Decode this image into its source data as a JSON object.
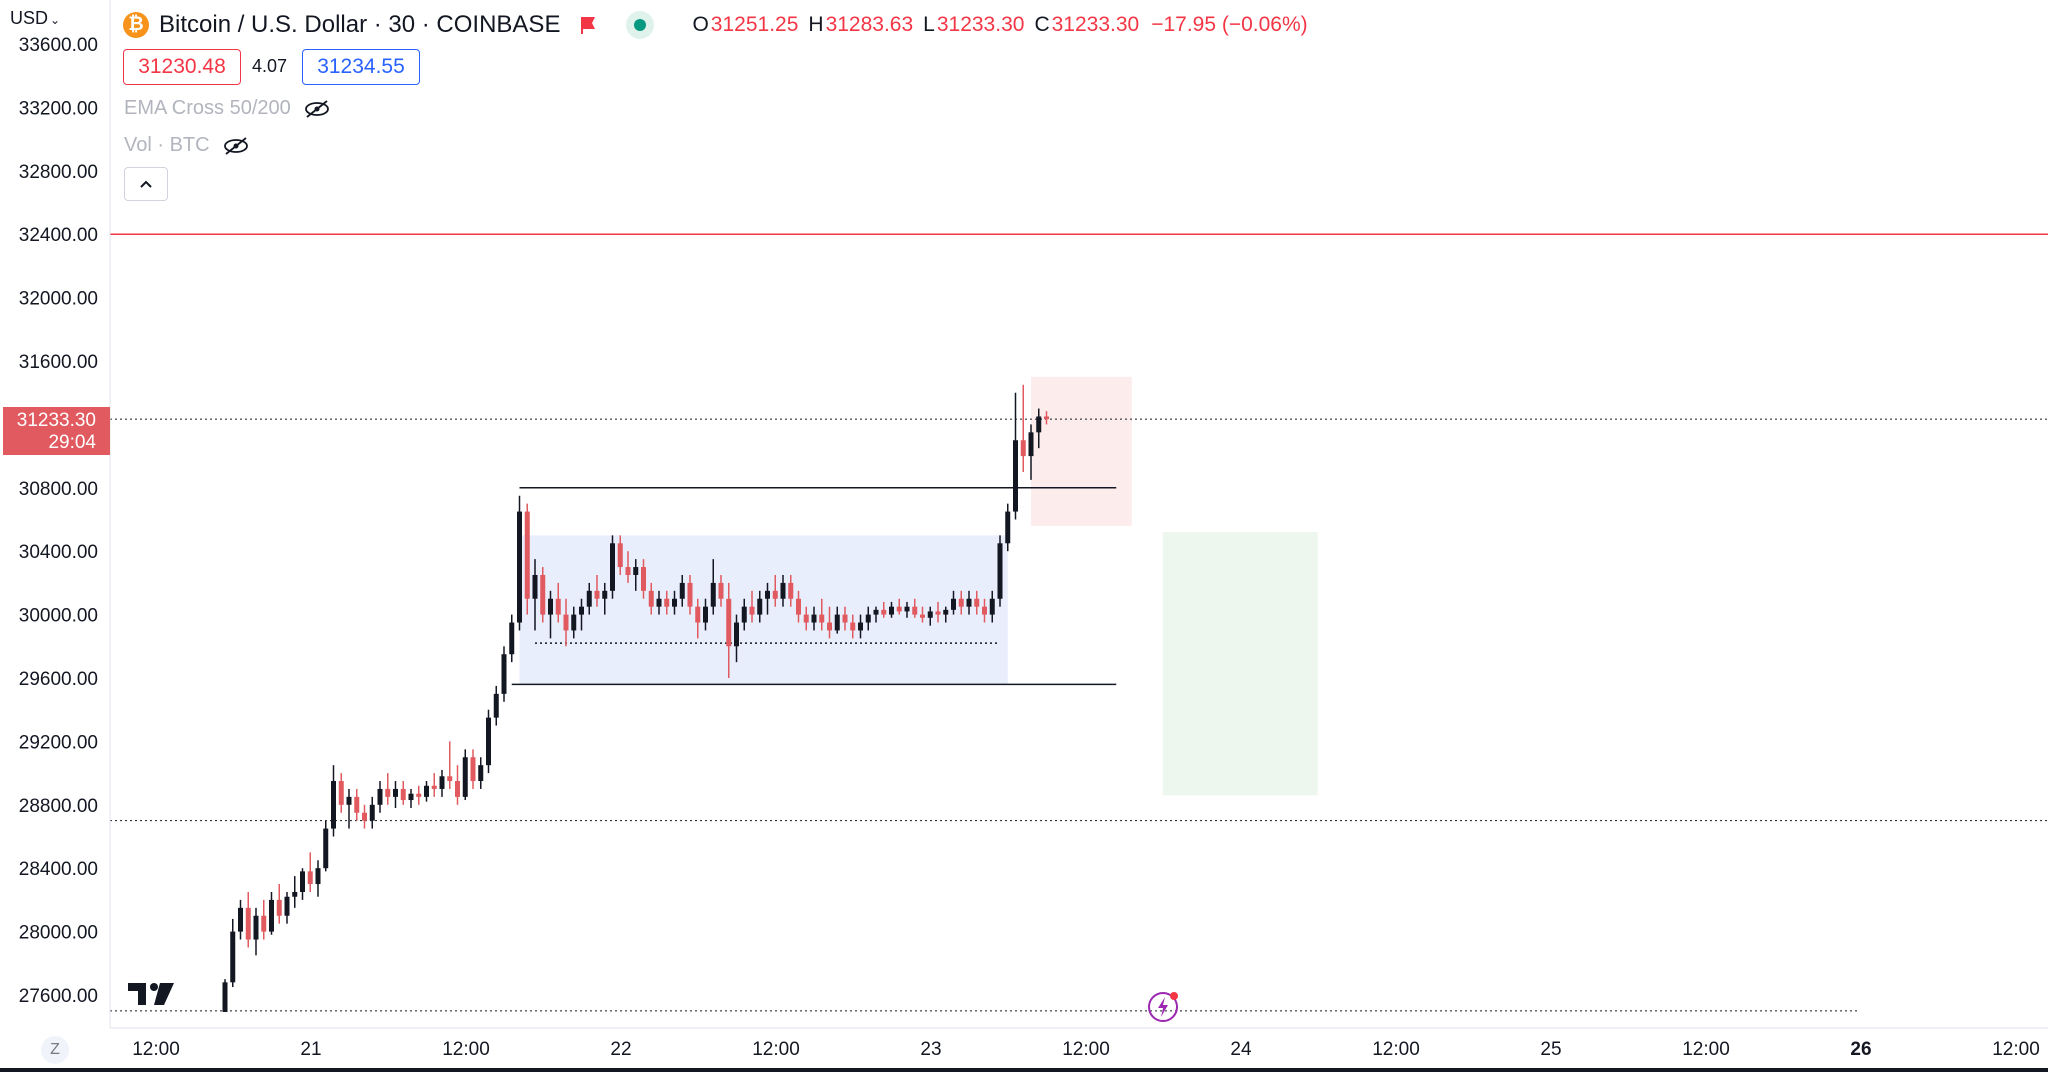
{
  "header": {
    "currency_selector": "USD",
    "coin_symbol": "₿",
    "symbol_title": "Bitcoin / U.S. Dollar · 30 · COINBASE",
    "ohlc": [
      {
        "key": "O",
        "value": "31251.25"
      },
      {
        "key": "H",
        "value": "31283.63"
      },
      {
        "key": "L",
        "value": "31233.30"
      },
      {
        "key": "C",
        "value": "31233.30"
      }
    ],
    "change": "−17.95 (−0.06%)",
    "sell_price": "31230.48",
    "spread": "4.07",
    "buy_price": "31234.55",
    "indicators": [
      "EMA Cross 50/200",
      "Vol · BTC"
    ]
  },
  "price_axis": {
    "ticks": [
      "27600.00",
      "28000.00",
      "28400.00",
      "28800.00",
      "29200.00",
      "29600.00",
      "30000.00",
      "30400.00",
      "30800.00",
      "31200.00",
      "31600.00",
      "32000.00",
      "32400.00",
      "32800.00",
      "33200.00",
      "33600.00"
    ],
    "last_price": "31233.30",
    "countdown": "29:04"
  },
  "time_axis": {
    "ticks": [
      "12:00",
      "21",
      "12:00",
      "22",
      "12:00",
      "23",
      "12:00",
      "24",
      "12:00",
      "25",
      "12:00",
      "26",
      "12:00"
    ]
  },
  "bottom": {
    "scale_button": "Z"
  },
  "colors": {
    "up": "#131722",
    "down": "#e05a5f",
    "range_box": "#e9eefc",
    "target_box": "#eef7ee",
    "stop_box": "#fcecec",
    "hline_red": "#f23645"
  },
  "chart_data": {
    "type": "candlestick",
    "symbol": "Bitcoin / U.S. Dollar",
    "interval": "30",
    "exchange": "COINBASE",
    "ylim": [
      27450,
      33650
    ],
    "xlim_bars": [
      0,
      220
    ],
    "bars_visible": 120,
    "time_ticks_bar_index": {
      "21 12:00": [
        0,
        10
      ],
      "labels_every_bars": 24
    },
    "candles_ohlc": [
      [
        27400,
        27700,
        27350,
        27680
      ],
      [
        27680,
        28080,
        27650,
        28000
      ],
      [
        28000,
        28200,
        27950,
        28150
      ],
      [
        28150,
        28250,
        27900,
        27950
      ],
      [
        27950,
        28150,
        27850,
        28100
      ],
      [
        28100,
        28200,
        27950,
        28000
      ],
      [
        28000,
        28250,
        27980,
        28200
      ],
      [
        28200,
        28300,
        28050,
        28100
      ],
      [
        28100,
        28250,
        28050,
        28220
      ],
      [
        28220,
        28350,
        28150,
        28250
      ],
      [
        28250,
        28400,
        28200,
        28380
      ],
      [
        28380,
        28500,
        28250,
        28300
      ],
      [
        28300,
        28450,
        28220,
        28400
      ],
      [
        28400,
        28700,
        28380,
        28650
      ],
      [
        28650,
        29050,
        28600,
        28950
      ],
      [
        28950,
        29000,
        28750,
        28800
      ],
      [
        28800,
        28900,
        28650,
        28850
      ],
      [
        28850,
        28900,
        28700,
        28750
      ],
      [
        28750,
        28800,
        28650,
        28700
      ],
      [
        28700,
        28850,
        28650,
        28800
      ],
      [
        28800,
        28950,
        28750,
        28900
      ],
      [
        28900,
        29000,
        28800,
        28850
      ],
      [
        28850,
        28950,
        28780,
        28900
      ],
      [
        28900,
        28950,
        28800,
        28830
      ],
      [
        28830,
        28900,
        28780,
        28870
      ],
      [
        28870,
        28920,
        28800,
        28850
      ],
      [
        28850,
        28950,
        28820,
        28920
      ],
      [
        28920,
        29000,
        28850,
        28900
      ],
      [
        28900,
        29020,
        28850,
        28980
      ],
      [
        28980,
        29200,
        28900,
        28950
      ],
      [
        28950,
        29050,
        28800,
        28850
      ],
      [
        28850,
        29150,
        28830,
        29100
      ],
      [
        29100,
        29150,
        28900,
        28950
      ],
      [
        28950,
        29100,
        28900,
        29050
      ],
      [
        29050,
        29400,
        29000,
        29350
      ],
      [
        29350,
        29550,
        29300,
        29500
      ],
      [
        29500,
        29800,
        29450,
        29750
      ],
      [
        29750,
        30000,
        29700,
        29950
      ],
      [
        29950,
        30750,
        29900,
        30650
      ],
      [
        30650,
        30700,
        30000,
        30100
      ],
      [
        30100,
        30350,
        29900,
        30250
      ],
      [
        30250,
        30300,
        29950,
        30000
      ],
      [
        30000,
        30150,
        29850,
        30100
      ],
      [
        30100,
        30200,
        29950,
        30000
      ],
      [
        30000,
        30100,
        29800,
        29900
      ],
      [
        29900,
        30050,
        29850,
        30000
      ],
      [
        30000,
        30100,
        29900,
        30050
      ],
      [
        30050,
        30200,
        30000,
        30150
      ],
      [
        30150,
        30250,
        30050,
        30100
      ],
      [
        30100,
        30200,
        30000,
        30150
      ],
      [
        30150,
        30500,
        30100,
        30450
      ],
      [
        30450,
        30500,
        30250,
        30300
      ],
      [
        30300,
        30400,
        30200,
        30250
      ],
      [
        30250,
        30350,
        30150,
        30300
      ],
      [
        30300,
        30350,
        30100,
        30150
      ],
      [
        30150,
        30200,
        30000,
        30050
      ],
      [
        30050,
        30150,
        30000,
        30100
      ],
      [
        30100,
        30150,
        30000,
        30050
      ],
      [
        30050,
        30150,
        30000,
        30100
      ],
      [
        30100,
        30250,
        30050,
        30200
      ],
      [
        30200,
        30250,
        30000,
        30050
      ],
      [
        30050,
        30100,
        29850,
        29950
      ],
      [
        29950,
        30100,
        29900,
        30050
      ],
      [
        30050,
        30350,
        30000,
        30200
      ],
      [
        30200,
        30250,
        30050,
        30100
      ],
      [
        30100,
        30200,
        29600,
        29800
      ],
      [
        29800,
        30000,
        29700,
        29950
      ],
      [
        29950,
        30100,
        29900,
        30050
      ],
      [
        30050,
        30150,
        29950,
        30000
      ],
      [
        30000,
        30150,
        29950,
        30100
      ],
      [
        30100,
        30200,
        30000,
        30150
      ],
      [
        30150,
        30250,
        30050,
        30100
      ],
      [
        30100,
        30250,
        30050,
        30200
      ],
      [
        30200,
        30250,
        30050,
        30100
      ],
      [
        30100,
        30150,
        29950,
        30000
      ],
      [
        30000,
        30050,
        29900,
        29950
      ],
      [
        29950,
        30050,
        29900,
        30000
      ],
      [
        30000,
        30100,
        29900,
        29950
      ],
      [
        29950,
        30050,
        29850,
        29900
      ],
      [
        29900,
        30050,
        29880,
        30000
      ],
      [
        30000,
        30050,
        29900,
        29950
      ],
      [
        29950,
        30000,
        29850,
        29900
      ],
      [
        29900,
        30000,
        29850,
        29950
      ],
      [
        29950,
        30050,
        29900,
        30000
      ],
      [
        30000,
        30050,
        29950,
        30030
      ],
      [
        30030,
        30080,
        29980,
        30000
      ],
      [
        30000,
        30080,
        29980,
        30050
      ],
      [
        30050,
        30100,
        30000,
        30020
      ],
      [
        30020,
        30080,
        29980,
        30050
      ],
      [
        30050,
        30100,
        29980,
        30000
      ],
      [
        30000,
        30050,
        29950,
        29980
      ],
      [
        29980,
        30050,
        29930,
        30020
      ],
      [
        30020,
        30080,
        29950,
        30000
      ],
      [
        30000,
        30050,
        29950,
        30030
      ],
      [
        30030,
        30150,
        30000,
        30100
      ],
      [
        30100,
        30150,
        30000,
        30050
      ],
      [
        30050,
        30150,
        30000,
        30100
      ],
      [
        30100,
        30150,
        30000,
        30050
      ],
      [
        30050,
        30100,
        29950,
        30000
      ],
      [
        30000,
        30150,
        29950,
        30100
      ],
      [
        30100,
        30500,
        30050,
        30450
      ],
      [
        30450,
        30700,
        30400,
        30650
      ],
      [
        30650,
        31400,
        30600,
        31100
      ],
      [
        31100,
        31450,
        30900,
        31000
      ],
      [
        31000,
        31200,
        30850,
        31150
      ],
      [
        31150,
        31300,
        31050,
        31250
      ],
      [
        31250,
        31284,
        31200,
        31233
      ]
    ],
    "annotations": {
      "horizontal_lines": [
        {
          "price": 32400,
          "style": "solid",
          "color": "#f23645"
        },
        {
          "price": 31233.3,
          "style": "dotted",
          "color": "#131722"
        },
        {
          "price": 28700,
          "style": "dotted",
          "color": "#131722"
        },
        {
          "price": 27500,
          "style": "dotted",
          "color": "#131722"
        }
      ],
      "range_box": {
        "from_bar": 38,
        "to_bar": 101,
        "top": 30500,
        "bottom": 29560
      },
      "range_lines": [
        {
          "from_bar": 38,
          "to_bar": 115,
          "price": 30800
        },
        {
          "from_bar": 37,
          "to_bar": 115,
          "price": 29560
        },
        {
          "from_bar": 40,
          "to_bar": 100,
          "price": 29820,
          "style": "dotted"
        }
      ],
      "stop_box": {
        "from_bar": 104,
        "to_bar": 117,
        "top": 31500,
        "bottom": 30560
      },
      "target_box": {
        "from_bar": 121,
        "to_bar": 141,
        "top": 30520,
        "bottom": 28860
      }
    }
  }
}
